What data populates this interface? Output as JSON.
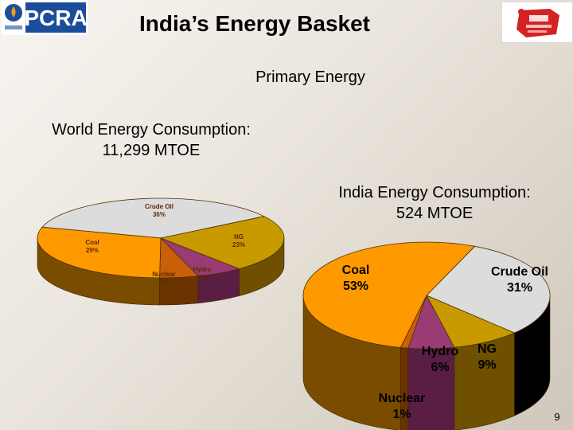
{
  "header": {
    "logo_text": "PCRA",
    "title": "India’s Energy Basket",
    "subtitle": "Primary Energy",
    "page_number": "9"
  },
  "colors": {
    "coal": "#ff9900",
    "crude_oil": "#dcdcdc",
    "ng": "#c89a00",
    "hydro": "#9a3b74",
    "nuclear": "#c8600a",
    "coal_side": "#7a4c00",
    "crude_side": "#8c8c8c",
    "ng_side": "#6e5000",
    "hydro_side": "#5a1e44",
    "nuclear_side": "#6b3300",
    "pcra_blue": "#1c4c9c",
    "pcra_orange": "#f39c12"
  },
  "chart_data": [
    {
      "type": "pie",
      "title": "World Energy Consumption:",
      "total": "11,299 MTOE",
      "slices": [
        {
          "key": "crude_oil",
          "label": "Crude Oil",
          "pct_text": "36%",
          "value": 36
        },
        {
          "key": "ng",
          "label": "NG",
          "pct_text": "23%",
          "value": 23
        },
        {
          "key": "hydro",
          "label": "Hydro",
          "pct_text": "6%",
          "value": 6
        },
        {
          "key": "nuclear",
          "label": "Nuclear",
          "pct_text": "5%",
          "value": 5
        },
        {
          "key": "coal",
          "label": "Coal",
          "pct_text": "29%",
          "value": 29
        }
      ]
    },
    {
      "type": "pie",
      "title": "India Energy Consumption:",
      "total": "524 MTOE",
      "slices": [
        {
          "key": "crude_oil",
          "label": "Crude Oil",
          "pct_text": "31%",
          "value": 31
        },
        {
          "key": "ng",
          "label": "NG",
          "pct_text": "9%",
          "value": 9
        },
        {
          "key": "hydro",
          "label": "Hydro",
          "pct_text": "6%",
          "value": 6
        },
        {
          "key": "nuclear",
          "label": "Nuclear",
          "pct_text": "1%",
          "value": 1
        },
        {
          "key": "coal",
          "label": "Coal",
          "pct_text": "53%",
          "value": 53
        }
      ]
    }
  ]
}
